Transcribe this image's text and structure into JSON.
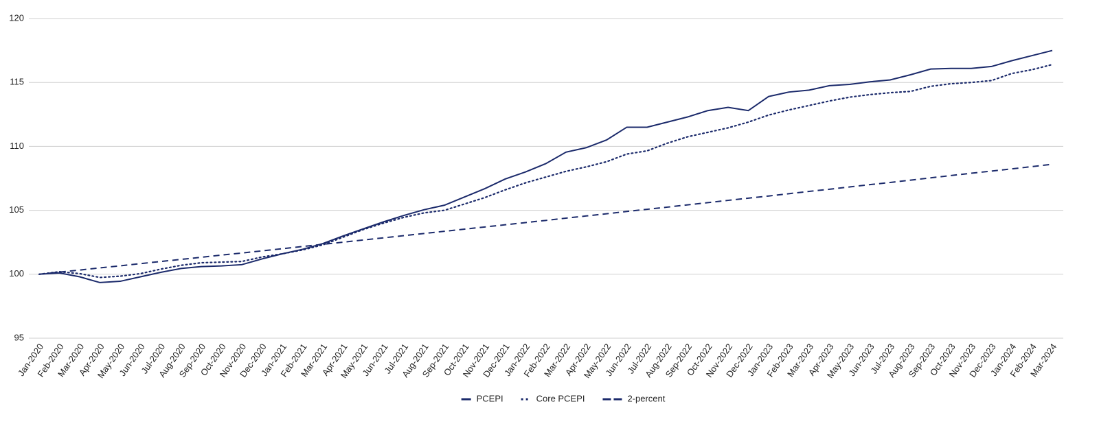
{
  "chart_data": {
    "type": "line",
    "categories": [
      "Jan-2020",
      "Feb-2020",
      "Mar-2020",
      "Apr-2020",
      "May-2020",
      "Jun-2020",
      "Jul-2020",
      "Aug-2020",
      "Sep-2020",
      "Oct-2020",
      "Nov-2020",
      "Dec-2020",
      "Jan-2021",
      "Feb-2021",
      "Mar-2021",
      "Apr-2021",
      "May-2021",
      "Jun-2021",
      "Jul-2021",
      "Aug-2021",
      "Sep-2021",
      "Oct-2021",
      "Nov-2021",
      "Dec-2021",
      "Jan-2022",
      "Feb-2022",
      "Mar-2022",
      "Apr-2022",
      "May-2022",
      "Jun-2022",
      "Jul-2022",
      "Aug-2022",
      "Sep-2022",
      "Oct-2022",
      "Nov-2022",
      "Dec-2022",
      "Jan-2023",
      "Feb-2023",
      "Mar-2023",
      "Apr-2023",
      "May-2023",
      "Jun-2023",
      "Jul-2023",
      "Aug-2023",
      "Sep-2023",
      "Oct-2023",
      "Nov-2023",
      "Dec-2023",
      "Jan-2024",
      "Feb-2024",
      "Mar-2024"
    ],
    "series": [
      {
        "name": "PCEPI",
        "color": "#1b2a6b",
        "style": "solid",
        "values": [
          100,
          100.1,
          99.8,
          99.35,
          99.45,
          99.8,
          100.15,
          100.45,
          100.6,
          100.65,
          100.75,
          101.2,
          101.6,
          101.95,
          102.4,
          103.0,
          103.55,
          104.1,
          104.6,
          105.05,
          105.4,
          106.05,
          106.7,
          107.45,
          108.0,
          108.65,
          109.55,
          109.9,
          110.5,
          111.5,
          111.5,
          111.9,
          112.3,
          112.8,
          113.05,
          112.8,
          113.9,
          114.25,
          114.4,
          114.75,
          114.85,
          115.05,
          115.2,
          115.6,
          116.05,
          116.1,
          116.1,
          116.25,
          116.7,
          117.1,
          117.5
        ]
      },
      {
        "name": "Core PCEPI",
        "color": "#1b2a6b",
        "style": "dotted",
        "values": [
          100,
          100.2,
          100.05,
          99.75,
          99.85,
          100.05,
          100.4,
          100.7,
          100.9,
          100.95,
          101.0,
          101.35,
          101.6,
          101.9,
          102.3,
          102.9,
          103.5,
          104.0,
          104.45,
          104.8,
          105.0,
          105.5,
          106.0,
          106.6,
          107.15,
          107.6,
          108.05,
          108.4,
          108.8,
          109.4,
          109.65,
          110.25,
          110.75,
          111.1,
          111.45,
          111.9,
          112.45,
          112.85,
          113.2,
          113.55,
          113.85,
          114.05,
          114.2,
          114.3,
          114.7,
          114.9,
          115.0,
          115.15,
          115.7,
          116.0,
          116.4
        ]
      },
      {
        "name": "2-percent",
        "color": "#1b2a6b",
        "style": "dashed",
        "values": [
          100,
          100.17,
          100.33,
          100.5,
          100.66,
          100.83,
          101.0,
          101.16,
          101.33,
          101.5,
          101.66,
          101.83,
          102.0,
          102.17,
          102.34,
          102.51,
          102.68,
          102.85,
          103.02,
          103.19,
          103.36,
          103.53,
          103.7,
          103.87,
          104.04,
          104.21,
          104.39,
          104.56,
          104.73,
          104.91,
          105.08,
          105.25,
          105.43,
          105.6,
          105.78,
          105.95,
          106.12,
          106.3,
          106.48,
          106.65,
          106.83,
          107.01,
          107.18,
          107.36,
          107.54,
          107.72,
          107.9,
          108.07,
          108.24,
          108.42,
          108.6
        ]
      }
    ],
    "ylim": [
      95,
      120
    ],
    "yticks": [
      95,
      100,
      105,
      110,
      115,
      120
    ],
    "grid": true,
    "legend": "bottom"
  }
}
